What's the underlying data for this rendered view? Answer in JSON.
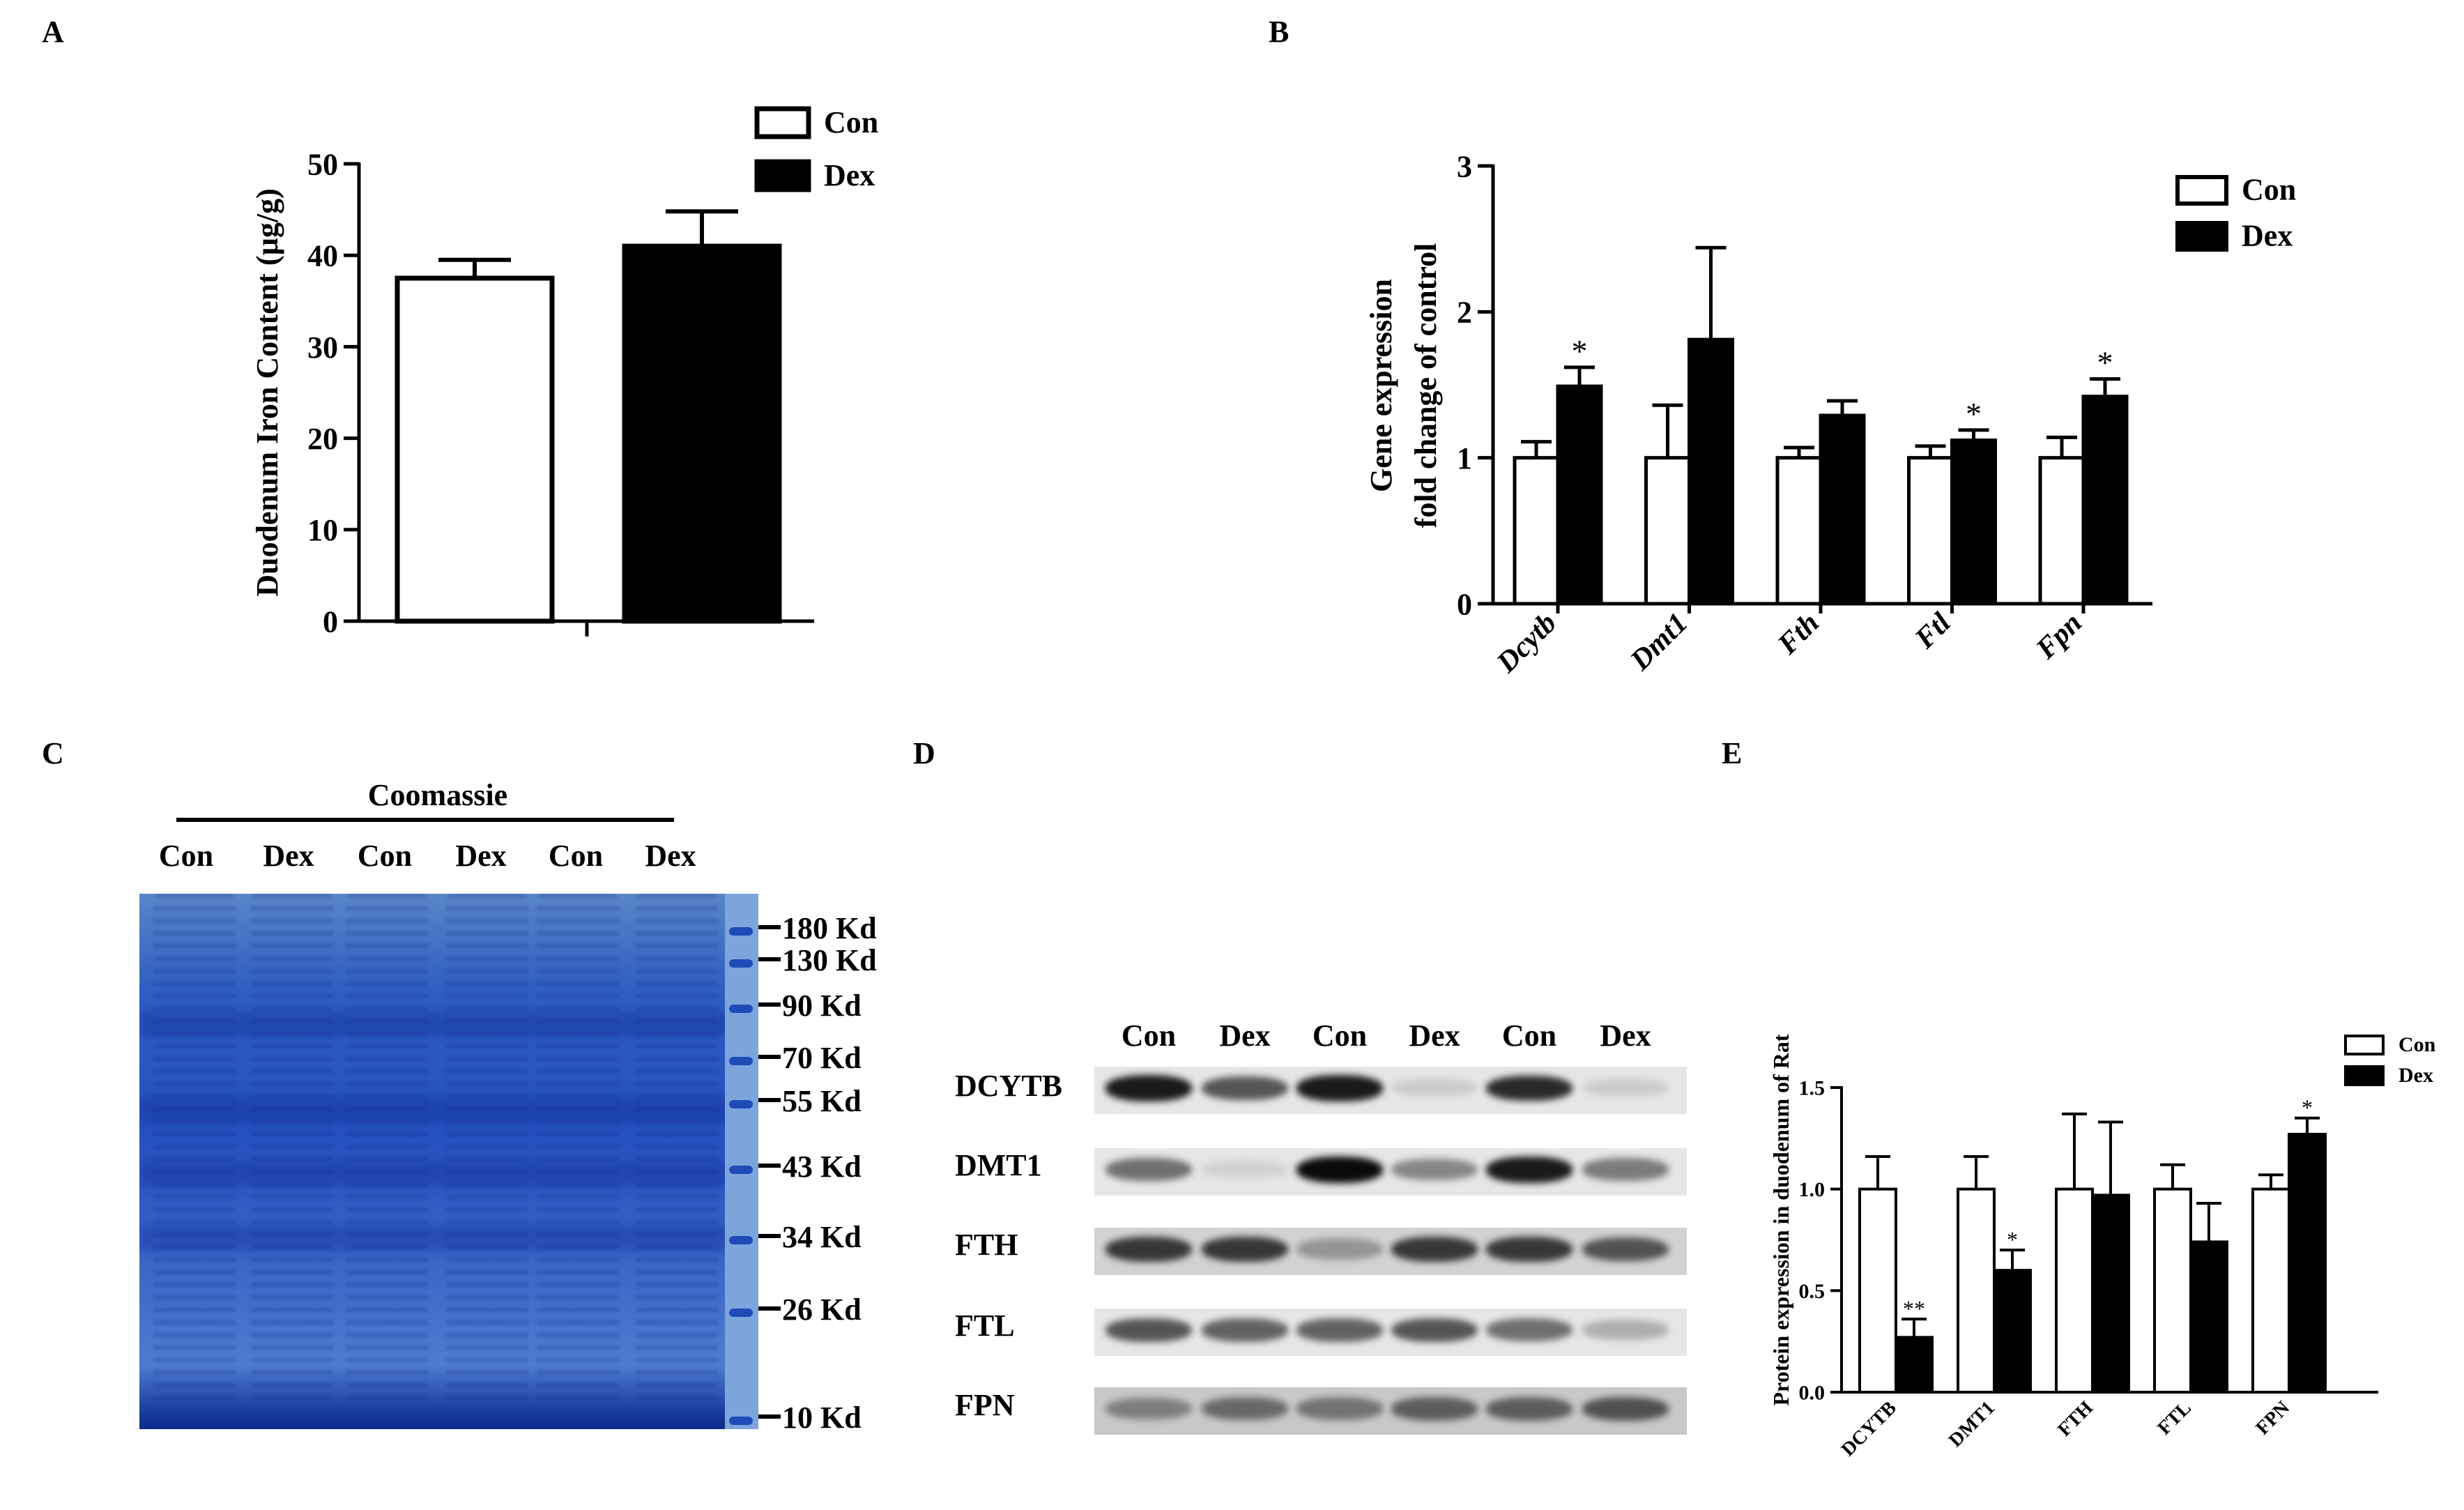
{
  "panels": {
    "a": "A",
    "b": "B",
    "c": "C",
    "d": "D",
    "e": "E"
  },
  "chart_data": [
    {
      "id": "A",
      "type": "bar",
      "ylabel": "Duodenum Iron Content (µg/g)",
      "ylim": [
        0,
        50
      ],
      "yticks": [
        0,
        10,
        20,
        30,
        40,
        50
      ],
      "series": [
        {
          "name": "Con",
          "fill": "#ffffff",
          "values": [
            37.5
          ],
          "errors": [
            2
          ]
        },
        {
          "name": "Dex",
          "fill": "#000000",
          "values": [
            41
          ],
          "errors": [
            3.8
          ]
        }
      ],
      "legend": [
        {
          "label": "Con",
          "fill": "#ffffff"
        },
        {
          "label": "Dex",
          "fill": "#000000"
        }
      ],
      "legend_position": "top-right"
    },
    {
      "id": "B",
      "type": "bar",
      "ylabel_line1": "Gene expression",
      "ylabel_line2": "fold change of control",
      "ylim": [
        0,
        3
      ],
      "yticks": [
        0,
        1,
        2,
        3
      ],
      "categories": [
        "Dcytb",
        "Dmt1",
        "Fth",
        "Ftl",
        "Fpn"
      ],
      "series": [
        {
          "name": "Con",
          "fill": "#ffffff",
          "values": [
            1,
            1,
            1,
            1,
            1
          ],
          "errors": [
            0.11,
            0.36,
            0.07,
            0.08,
            0.14
          ]
        },
        {
          "name": "Dex",
          "fill": "#000000",
          "values": [
            1.49,
            1.81,
            1.29,
            1.12,
            1.42
          ],
          "errors": [
            0.13,
            0.63,
            0.1,
            0.07,
            0.12
          ]
        }
      ],
      "significance": [
        "*",
        "",
        "",
        "*",
        "*"
      ],
      "legend": [
        {
          "label": "Con",
          "fill": "#ffffff"
        },
        {
          "label": "Dex",
          "fill": "#000000"
        }
      ],
      "legend_position": "top-right"
    },
    {
      "id": "E",
      "type": "bar",
      "ylabel": "Protein expression in duodenum of Rat",
      "ylim": [
        0,
        1.5
      ],
      "yticks": [
        "0.0",
        "0.5",
        "1.0",
        "1.5"
      ],
      "categories": [
        "DCYTB",
        "DMT1",
        "FTH",
        "FTL",
        "FPN"
      ],
      "series": [
        {
          "name": "Con",
          "fill": "#ffffff",
          "values": [
            1,
            1,
            1,
            1,
            1
          ],
          "errors": [
            0.16,
            0.16,
            0.37,
            0.12,
            0.07
          ]
        },
        {
          "name": "Dex",
          "fill": "#000000",
          "values": [
            0.27,
            0.6,
            0.97,
            0.74,
            1.27
          ],
          "errors": [
            0.09,
            0.1,
            0.36,
            0.19,
            0.08
          ]
        }
      ],
      "significance": [
        "**",
        "*",
        "",
        "",
        "*"
      ],
      "legend": [
        {
          "label": "Con",
          "fill": "#ffffff"
        },
        {
          "label": "Dex",
          "fill": "#000000"
        }
      ],
      "legend_position": "top-right"
    }
  ],
  "gel": {
    "title": "Coomassie",
    "lanes": [
      "Con",
      "Dex",
      "Con",
      "Dex",
      "Con",
      "Dex"
    ],
    "markers": [
      "180 Kd",
      "130 Kd",
      "90 Kd",
      "70 Kd",
      "55 Kd",
      "43 Kd",
      "34 Kd",
      "26 Kd",
      "10 Kd"
    ],
    "stain_color": "#2e5fc4"
  },
  "blot": {
    "lanes": [
      "Con",
      "Dex",
      "Con",
      "Dex",
      "Con",
      "Dex"
    ],
    "rows": [
      {
        "label": "DCYTB",
        "intensity": [
          0.95,
          0.75,
          0.95,
          0.15,
          0.9,
          0.15
        ]
      },
      {
        "label": "DMT1",
        "intensity": [
          0.65,
          0.1,
          1.0,
          0.55,
          0.95,
          0.6
        ]
      },
      {
        "label": "FTH",
        "intensity": [
          0.85,
          0.85,
          0.45,
          0.85,
          0.85,
          0.75
        ]
      },
      {
        "label": "FTL",
        "intensity": [
          0.75,
          0.7,
          0.7,
          0.75,
          0.65,
          0.35
        ]
      },
      {
        "label": "FPN",
        "intensity": [
          0.55,
          0.65,
          0.6,
          0.7,
          0.7,
          0.75
        ]
      }
    ]
  }
}
